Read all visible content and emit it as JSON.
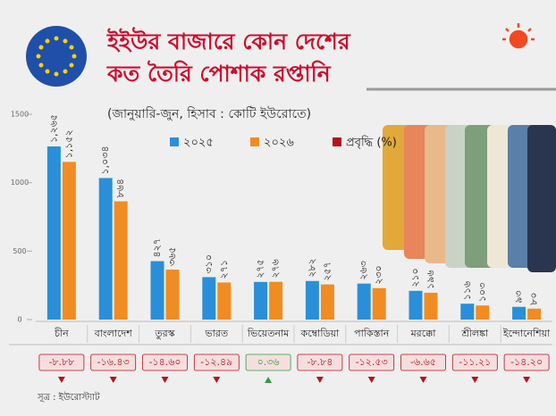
{
  "chart_data": {
    "type": "bar",
    "title": [
      "ইইউর বাজারে কোন দেশের",
      "কত তৈরি পোশাক রপ্তানি"
    ],
    "subtitle": "(জানুয়ারি-জুন, হিসাব : কোটি ইউরোতে)",
    "source": "সূত্র : ইউরোস্ট্যাট",
    "categories": [
      "চীন",
      "বাংলাদেশ",
      "তুরস্ক",
      "ভারত",
      "ভিয়েতনাম",
      "কম্বোডিয়া",
      "পাকিস্তান",
      "মরক্কো",
      "শ্রীলঙ্কা",
      "ইন্দোনেশিয়া"
    ],
    "series": [
      {
        "name": "২০২৫",
        "color": "#2a8fd8",
        "values": [
          1265,
          1034,
          427,
          310,
          275,
          282,
          263,
          210,
          116,
          93
        ],
        "value_labels": [
          "১,২৬৫",
          "১,০৩৪",
          "৪২৭",
          "৩১০",
          "২৭৫",
          "২৮২",
          "২৬৩",
          "২১০",
          "১১৬",
          "৯৩"
        ]
      },
      {
        "name": "২০২৬",
        "color": "#f08c22",
        "values": [
          1152,
          864,
          365,
          271,
          276,
          257,
          230,
          196,
          103,
          80
        ],
        "value_labels": [
          "১,১৫২",
          "৮৬৪",
          "৩৬৫",
          "২৭১",
          "২৭৬",
          "২৫৭",
          "২৩০",
          "১৯৬",
          "১০৩",
          "৮০"
        ]
      }
    ],
    "growth": {
      "name": "প্রবৃদ্ধি (%)",
      "color": "#b5121b",
      "positive_color": "#2e9e3e",
      "values": [
        -8.88,
        -16.43,
        -14.6,
        -12.49,
        0.36,
        -8.84,
        -12.53,
        -6.65,
        -11.21,
        -14.2
      ],
      "value_labels": [
        "-৮.৮৮",
        "-১৬.৪৩",
        "-১৪.৬০",
        "-১২.৪৯",
        "০.৩৬",
        "-৮.৮৪",
        "-১২.৫৩",
        "-৬.৬৫",
        "-১১.২১",
        "-১৪.২০"
      ]
    },
    "ylim": [
      0,
      1500
    ],
    "yticks": [
      0,
      500,
      1000,
      1500
    ]
  }
}
